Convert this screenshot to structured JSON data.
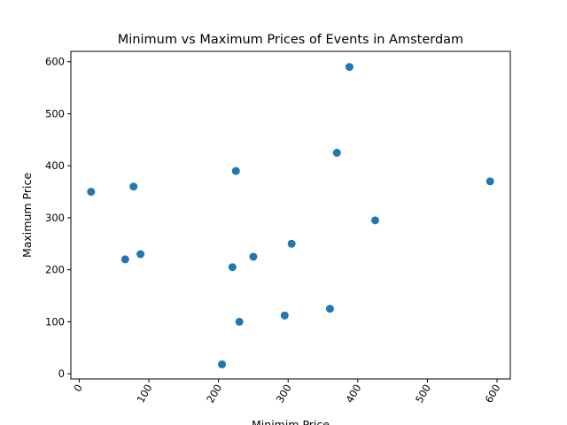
{
  "chart_data": {
    "type": "scatter",
    "title": "Minimum vs Maximum Prices of Events in Amsterdam",
    "xlabel": "Minimim Price",
    "ylabel": "Maximum Price",
    "xlim": [
      -12,
      619
    ],
    "ylim": [
      -10,
      620
    ],
    "x_ticks": [
      0,
      100,
      200,
      300,
      400,
      500,
      600
    ],
    "y_ticks": [
      0,
      100,
      200,
      300,
      400,
      500,
      600
    ],
    "x_tick_labels": [
      "0",
      "100",
      "200",
      "300",
      "400",
      "500",
      "600"
    ],
    "y_tick_labels": [
      "0",
      "100",
      "200",
      "300",
      "400",
      "500",
      "600"
    ],
    "x_tick_rotation": 60,
    "grid": false,
    "marker_color": "#1f77b4",
    "points": [
      {
        "x": 17,
        "y": 350
      },
      {
        "x": 66,
        "y": 220
      },
      {
        "x": 78,
        "y": 360
      },
      {
        "x": 88,
        "y": 230
      },
      {
        "x": 205,
        "y": 18
      },
      {
        "x": 220,
        "y": 205
      },
      {
        "x": 225,
        "y": 390
      },
      {
        "x": 230,
        "y": 100
      },
      {
        "x": 250,
        "y": 225
      },
      {
        "x": 295,
        "y": 112
      },
      {
        "x": 305,
        "y": 250
      },
      {
        "x": 360,
        "y": 125
      },
      {
        "x": 370,
        "y": 425
      },
      {
        "x": 388,
        "y": 590
      },
      {
        "x": 425,
        "y": 295
      },
      {
        "x": 590,
        "y": 370
      }
    ]
  }
}
